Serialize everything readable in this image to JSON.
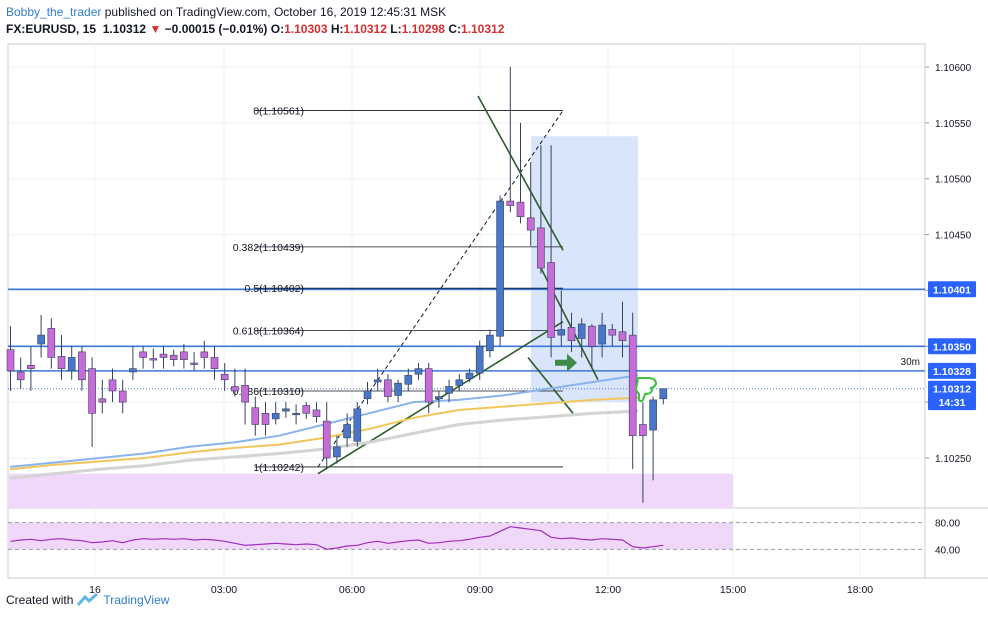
{
  "header": {
    "author": "Bobby_the_trader",
    "published_text": "published on TradingView.com, October 16, 2019 12:45:31 MSK",
    "symbol": "FX:EURUSD, 15",
    "last": "1.10312",
    "change_arrow": "▼",
    "change": "−0.00015 (−0.01%)",
    "o_label": "O:",
    "o": "1.10303",
    "h_label": "H:",
    "h": "1.10312",
    "l_label": "L:",
    "l": "1.10298",
    "c_label": "C:",
    "c": "1.10312"
  },
  "footer": {
    "created_with": "Created with",
    "brand": "TradingView"
  },
  "chart_data": {
    "type": "candlestick",
    "interval": "15",
    "x_ticks": [
      "16",
      "03:00",
      "06:00",
      "09:00",
      "12:00",
      "15:00",
      "18:00"
    ],
    "y_ticks": [
      1.1025,
      1.103,
      1.1035,
      1.104,
      1.1045,
      1.105,
      1.1055,
      1.106
    ],
    "y_tick_labels": [
      "1.10250",
      "1.10300",
      "1.10350",
      "1.10400",
      "1.10450",
      "1.10500",
      "1.10550",
      "1.10600"
    ],
    "price_labels": [
      {
        "text": "1.10401",
        "value": 1.10401,
        "color": "#2962ff"
      },
      {
        "text": "1.10350",
        "value": 1.1035,
        "color": "#2962ff"
      },
      {
        "text": "1.10328",
        "value": 1.10328,
        "color": "#2962ff"
      },
      {
        "text": "1.10312",
        "value": 1.10312,
        "color": "#2962ff"
      },
      {
        "text": "14:31",
        "value": 1.103,
        "color": "#2962ff"
      }
    ],
    "tf_label": "30m",
    "horizontal_levels": [
      1.10401,
      1.1035,
      1.10328
    ],
    "fibonacci": [
      {
        "label": "0(1.10561)",
        "value": 1.10561
      },
      {
        "label": "0.382(1.10439)",
        "value": 1.10439
      },
      {
        "label": "0.5(1.10402)",
        "value": 1.10402
      },
      {
        "label": "0.618(1.10364)",
        "value": 1.10364
      },
      {
        "label": "0.786(1.10310)",
        "value": 1.1031
      },
      {
        "label": "1(1.10242)",
        "value": 1.10242
      }
    ],
    "ma_fast": [
      1.10242,
      1.10246,
      1.1025,
      1.10254,
      1.1026,
      1.10264,
      1.1027,
      1.1028,
      1.1029,
      1.103,
      1.10302,
      1.10306,
      1.10312,
      1.10318,
      1.10324
    ],
    "ma_mid": [
      1.1024,
      1.10244,
      1.10247,
      1.1025,
      1.10255,
      1.10259,
      1.10262,
      1.10268,
      1.10276,
      1.10286,
      1.10293,
      1.10296,
      1.10299,
      1.10302,
      1.10304
    ],
    "ma_slow": [
      1.10232,
      1.10236,
      1.1024,
      1.10243,
      1.10248,
      1.10251,
      1.10254,
      1.10258,
      1.10264,
      1.10272,
      1.1028,
      1.10284,
      1.10287,
      1.1029,
      1.10292
    ],
    "candles": [
      [
        1.10347,
        1.10368,
        1.10328,
        1.1031
      ],
      [
        1.10327,
        1.1034,
        1.1032,
        1.10312
      ],
      [
        1.10333,
        1.1035,
        1.1033,
        1.1031
      ],
      [
        1.10352,
        1.10378,
        1.1036,
        1.1034
      ],
      [
        1.10366,
        1.10375,
        1.1034,
        1.1033
      ],
      [
        1.10341,
        1.1036,
        1.1033,
        1.1032
      ],
      [
        1.10328,
        1.1035,
        1.1034,
        1.1032
      ],
      [
        1.10345,
        1.1035,
        1.1032,
        1.1031
      ],
      [
        1.1033,
        1.1034,
        1.1029,
        1.1026
      ],
      [
        1.10303,
        1.1032,
        1.103,
        1.1029
      ],
      [
        1.1032,
        1.1033,
        1.1031,
        1.103
      ],
      [
        1.1031,
        1.1032,
        1.103,
        1.1029
      ],
      [
        1.10327,
        1.1035,
        1.1033,
        1.1032
      ],
      [
        1.10345,
        1.1035,
        1.1034,
        1.1033
      ],
      [
        1.10339,
        1.10348,
        1.10338,
        1.1033
      ],
      [
        1.10343,
        1.1035,
        1.1034,
        1.1033
      ],
      [
        1.10342,
        1.10347,
        1.10338,
        1.10332
      ],
      [
        1.10345,
        1.10352,
        1.10338,
        1.1033
      ],
      [
        1.10335,
        1.10345,
        1.10334,
        1.10328
      ],
      [
        1.10345,
        1.10355,
        1.1034,
        1.1033
      ],
      [
        1.1034,
        1.1035,
        1.1033,
        1.1032
      ],
      [
        1.10325,
        1.10335,
        1.1032,
        1.1031
      ],
      [
        1.10314,
        1.1033,
        1.1031,
        1.10305
      ],
      [
        1.10315,
        1.1033,
        1.103,
        1.1028
      ],
      [
        1.10295,
        1.10305,
        1.1028,
        1.1027
      ],
      [
        1.1029,
        1.103,
        1.1028,
        1.1027
      ],
      [
        1.10285,
        1.103,
        1.1029,
        1.1028
      ],
      [
        1.10292,
        1.103,
        1.10294,
        1.10286
      ],
      [
        1.1029,
        1.10298,
        1.1029,
        1.1028
      ],
      [
        1.10297,
        1.103,
        1.1029,
        1.10285
      ],
      [
        1.10293,
        1.103,
        1.10287,
        1.10282
      ],
      [
        1.10283,
        1.103,
        1.1025,
        1.1024
      ],
      [
        1.10251,
        1.1027,
        1.1026,
        1.10245
      ],
      [
        1.10268,
        1.1029,
        1.1028,
        1.1026
      ],
      [
        1.10265,
        1.103,
        1.10294,
        1.1026
      ],
      [
        1.10303,
        1.10318,
        1.1031,
        1.10298
      ],
      [
        1.10318,
        1.1033,
        1.1032,
        1.1031
      ],
      [
        1.1032,
        1.10325,
        1.10305,
        1.103
      ],
      [
        1.10306,
        1.1032,
        1.10317,
        1.103
      ],
      [
        1.10316,
        1.1033,
        1.10324,
        1.1031
      ],
      [
        1.10325,
        1.10335,
        1.1033,
        1.1032
      ],
      [
        1.1033,
        1.10335,
        1.103,
        1.1029
      ],
      [
        1.10303,
        1.1031,
        1.10305,
        1.10295
      ],
      [
        1.10308,
        1.1032,
        1.10314,
        1.103
      ],
      [
        1.10315,
        1.10325,
        1.1032,
        1.1031
      ],
      [
        1.10321,
        1.1033,
        1.10326,
        1.10318
      ],
      [
        1.10326,
        1.10355,
        1.1035,
        1.1032
      ],
      [
        1.10346,
        1.10365,
        1.1036,
        1.1034
      ],
      [
        1.10359,
        1.10485,
        1.1048,
        1.1035
      ],
      [
        1.1048,
        1.106,
        1.10476,
        1.1047
      ],
      [
        1.10479,
        1.1055,
        1.10466,
        1.1046
      ],
      [
        1.10465,
        1.10515,
        1.10454,
        1.1044
      ],
      [
        1.10456,
        1.1053,
        1.1042,
        1.10415
      ],
      [
        1.10425,
        1.1053,
        1.10358,
        1.1034
      ],
      [
        1.1036,
        1.104,
        1.10365,
        1.1035
      ],
      [
        1.10367,
        1.1038,
        1.10355,
        1.10345
      ],
      [
        1.10357,
        1.10375,
        1.1037,
        1.1034
      ],
      [
        1.10368,
        1.1037,
        1.1035,
        1.1033
      ],
      [
        1.10352,
        1.1038,
        1.10369,
        1.1034
      ],
      [
        1.10365,
        1.1037,
        1.1036,
        1.1035
      ],
      [
        1.10363,
        1.1039,
        1.10355,
        1.1034
      ],
      [
        1.1036,
        1.1038,
        1.1027,
        1.1024
      ],
      [
        1.1028,
        1.103,
        1.1027,
        1.1021
      ],
      [
        1.10275,
        1.10305,
        1.10302,
        1.1023
      ],
      [
        1.10303,
        1.10312,
        1.10312,
        1.10298
      ]
    ],
    "rsi": {
      "levels": [
        80,
        40
      ],
      "tick_labels": [
        "80.00",
        "40.00"
      ],
      "values": [
        52,
        54,
        55,
        53,
        55,
        56,
        54,
        53,
        50,
        51,
        53,
        50,
        54,
        56,
        55,
        56,
        55,
        56,
        54,
        55,
        54,
        52,
        49,
        46,
        47,
        48,
        49,
        48,
        47,
        48,
        47,
        40,
        42,
        45,
        46,
        50,
        52,
        49,
        51,
        53,
        54,
        49,
        50,
        52,
        53,
        55,
        58,
        60,
        67,
        74,
        72,
        70,
        68,
        58,
        56,
        57,
        55,
        54,
        56,
        55,
        54,
        44,
        42,
        44,
        46
      ]
    }
  }
}
